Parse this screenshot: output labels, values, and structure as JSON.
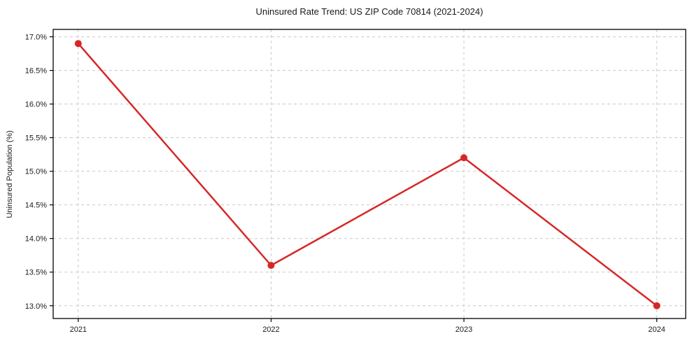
{
  "title": "Uninsured Rate Trend: US ZIP Code 70814 (2021-2024)",
  "chart_data": {
    "type": "line",
    "x": [
      2021,
      2022,
      2023,
      2024
    ],
    "values": [
      16.9,
      13.6,
      15.2,
      13.0
    ],
    "title": "Uninsured Rate Trend: US ZIP Code 70814 (2021-2024)",
    "xlabel": "",
    "ylabel": "Uninsured Population (%)",
    "xlim": [
      2020.87,
      2024.15
    ],
    "ylim": [
      12.81,
      17.11
    ],
    "xticks": [
      2021,
      2022,
      2023,
      2024
    ],
    "yticks": [
      13.0,
      13.5,
      14.0,
      14.5,
      15.0,
      15.5,
      16.0,
      16.5,
      17.0
    ],
    "ytick_suffix": "%",
    "ytick_decimals": 1,
    "grid": true,
    "grid_style": "dashed",
    "legend": "none",
    "marker": "circle",
    "line_color": "#d62728"
  },
  "colors": {
    "line": "#d62728",
    "grid": "#c9c9c9",
    "spine": "#000000",
    "text": "#1a1a1a",
    "background": "#ffffff"
  }
}
